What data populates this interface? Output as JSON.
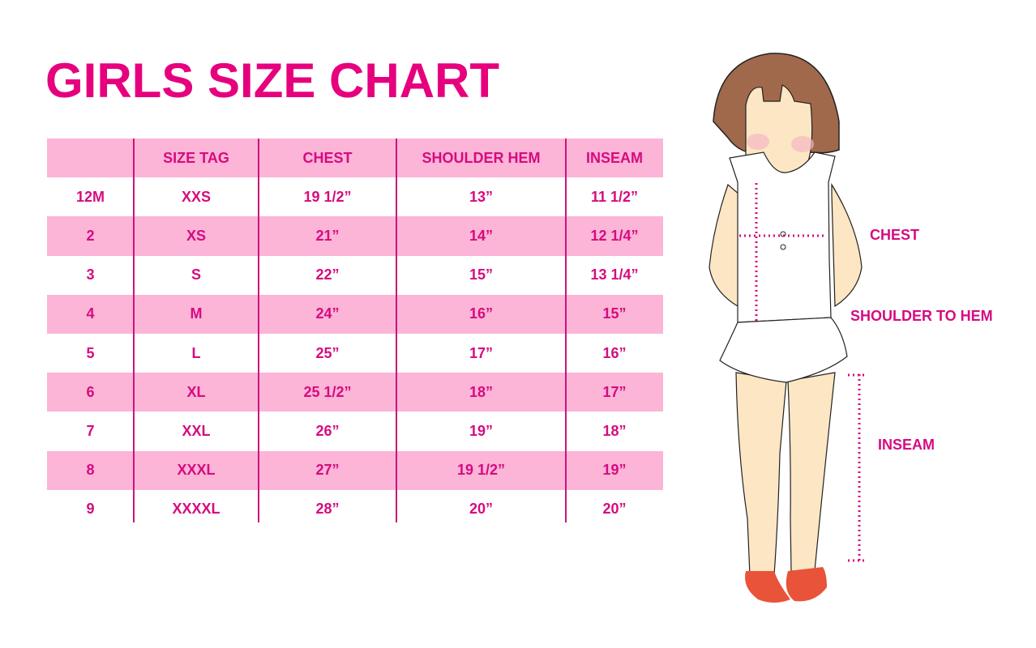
{
  "title": "GIRLS SIZE CHART",
  "table": {
    "headers": [
      "",
      "SIZE TAG",
      "CHEST",
      "SHOULDER HEM",
      "INSEAM"
    ],
    "rows": [
      [
        "12M",
        "XXS",
        "19 1/2”",
        "13”",
        "11 1/2”"
      ],
      [
        "2",
        "XS",
        "21”",
        "14”",
        "12 1/4”"
      ],
      [
        "3",
        "S",
        "22”",
        "15”",
        "13 1/4”"
      ],
      [
        "4",
        "M",
        "24”",
        "16”",
        "15”"
      ],
      [
        "5",
        "L",
        "25”",
        "17”",
        "16”"
      ],
      [
        "6",
        "XL",
        "25 1/2”",
        "18”",
        "17”"
      ],
      [
        "7",
        "XXL",
        "26”",
        "19”",
        "18”"
      ],
      [
        "8",
        "XXXL",
        "27”",
        "19 1/2”",
        "19”"
      ],
      [
        "9",
        "XXXXL",
        "28”",
        "20”",
        "20”"
      ]
    ]
  },
  "figure": {
    "chest_label": "CHEST",
    "shoulder_label": "SHOULDER TO HEM",
    "inseam_label": "INSEAM"
  },
  "colors": {
    "accent": "#e6007e",
    "row_pink": "#fcb4d7",
    "hair": "#a0694b",
    "skin": "#fde6c4",
    "shoes": "#e8533a"
  }
}
